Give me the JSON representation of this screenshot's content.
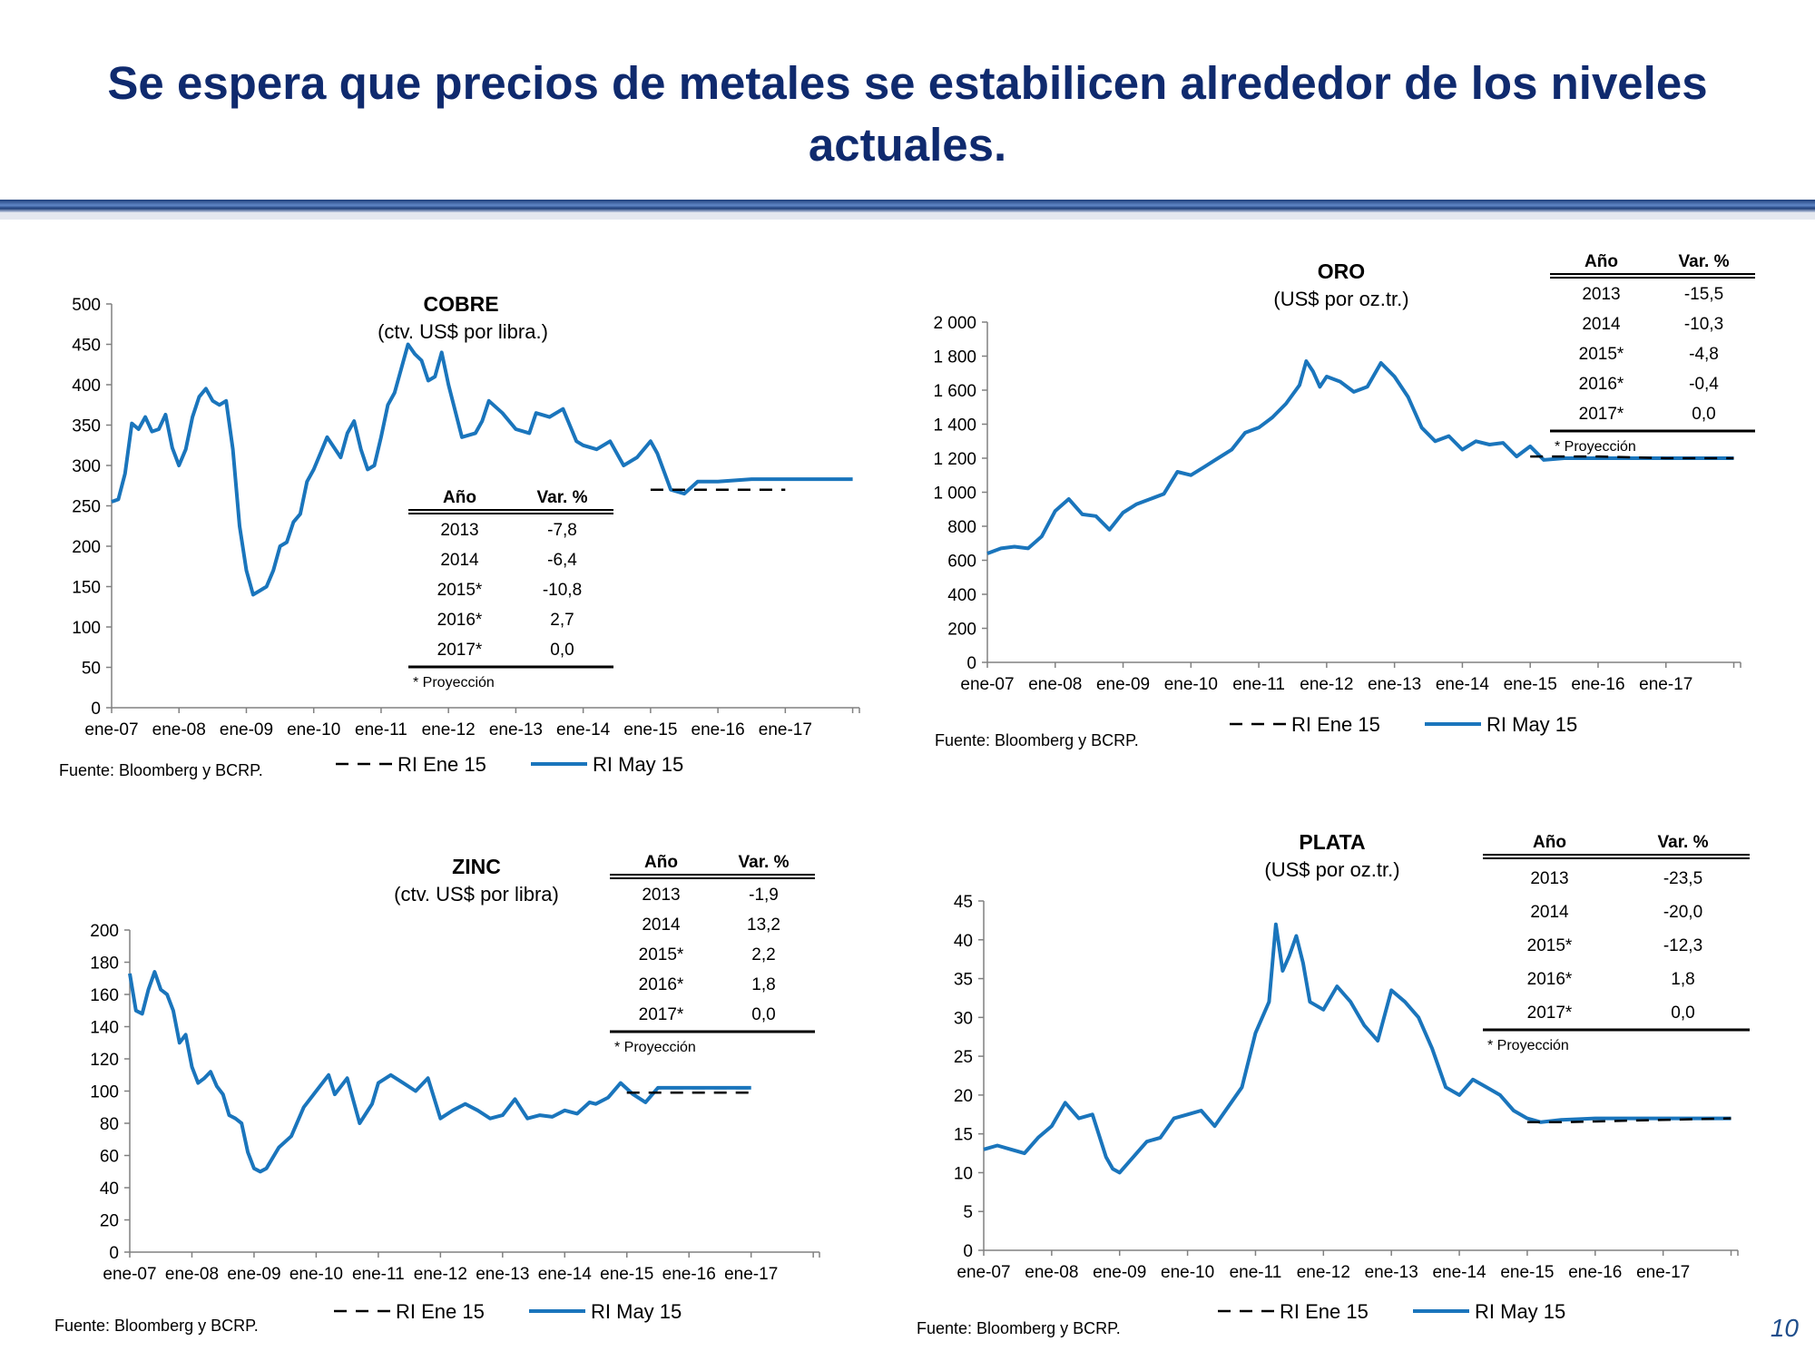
{
  "slide": {
    "title": "Se espera que precios de metales se estabilicen alrededor de los niveles actuales.",
    "page_number": "10"
  },
  "colors": {
    "title": "#0f2a6e",
    "series_may": "#1a75bc",
    "series_ene": "#000000",
    "rule_dark": "#1f3f7a",
    "rule_light": "#8faad8"
  },
  "chart_data": [
    {
      "id": "cobre",
      "type": "line",
      "title": "COBRE",
      "subtitle": "(ctv. US$ por libra.)",
      "source": "Fuente: Bloomberg y BCRP.",
      "x_tick_labels": [
        "ene-07",
        "ene-08",
        "ene-09",
        "ene-10",
        "ene-11",
        "ene-12",
        "ene-13",
        "ene-14",
        "ene-15",
        "ene-16",
        "ene-17"
      ],
      "x_range": [
        2007,
        2018.1
      ],
      "ylim": [
        0,
        500
      ],
      "y_ticks": [
        0,
        50,
        100,
        150,
        200,
        250,
        300,
        350,
        400,
        450,
        500
      ],
      "y_tick_labels": [
        "0",
        "50",
        "100",
        "150",
        "200",
        "250",
        "300",
        "350",
        "400",
        "450",
        "500"
      ],
      "grid": false,
      "legend": [
        "RI Ene 15",
        "RI May 15"
      ],
      "series": [
        {
          "name": "RI Ene 15",
          "style": "dashed",
          "x": [
            2015.0,
            2015.5,
            2016.0,
            2016.5,
            2017.0
          ],
          "y": [
            270,
            270,
            270,
            270,
            270
          ]
        },
        {
          "name": "RI May 15",
          "style": "solid",
          "x": [
            2007.0,
            2007.1,
            2007.2,
            2007.3,
            2007.4,
            2007.5,
            2007.6,
            2007.7,
            2007.8,
            2007.9,
            2008.0,
            2008.1,
            2008.2,
            2008.3,
            2008.4,
            2008.5,
            2008.6,
            2008.7,
            2008.8,
            2008.9,
            2009.0,
            2009.1,
            2009.2,
            2009.3,
            2009.4,
            2009.5,
            2009.6,
            2009.7,
            2009.8,
            2009.9,
            2010.0,
            2010.2,
            2010.4,
            2010.5,
            2010.6,
            2010.7,
            2010.8,
            2010.9,
            2011.0,
            2011.1,
            2011.2,
            2011.3,
            2011.4,
            2011.5,
            2011.6,
            2011.7,
            2011.8,
            2011.9,
            2012.0,
            2012.2,
            2012.4,
            2012.5,
            2012.6,
            2012.8,
            2013.0,
            2013.2,
            2013.3,
            2013.5,
            2013.7,
            2013.9,
            2014.0,
            2014.2,
            2014.4,
            2014.6,
            2014.8,
            2015.0,
            2015.1,
            2015.3,
            2015.5,
            2015.7,
            2016.0,
            2016.5,
            2017.0,
            2017.5,
            2018.0
          ],
          "y": [
            255,
            258,
            290,
            352,
            345,
            360,
            342,
            345,
            363,
            322,
            300,
            320,
            360,
            385,
            395,
            380,
            375,
            380,
            320,
            225,
            170,
            140,
            145,
            150,
            170,
            200,
            205,
            230,
            240,
            280,
            295,
            335,
            310,
            340,
            355,
            320,
            295,
            300,
            335,
            375,
            390,
            420,
            450,
            438,
            430,
            405,
            410,
            440,
            400,
            335,
            340,
            355,
            380,
            365,
            345,
            340,
            365,
            360,
            370,
            330,
            325,
            320,
            330,
            300,
            310,
            330,
            315,
            270,
            265,
            280,
            280,
            283,
            283,
            283,
            283
          ]
        }
      ],
      "table": {
        "headers": [
          "Año",
          "Var. %"
        ],
        "rows": [
          [
            "2013",
            "-7,8"
          ],
          [
            "2014",
            "-6,4"
          ],
          [
            "2015*",
            "-10,8"
          ],
          [
            "2016*",
            "2,7"
          ],
          [
            "2017*",
            "0,0"
          ]
        ],
        "note": "* Proyección"
      }
    },
    {
      "id": "oro",
      "type": "line",
      "title": "ORO",
      "subtitle": "(US$ por oz.tr.)",
      "source": "Fuente: Bloomberg y BCRP.",
      "x_tick_labels": [
        "ene-07",
        "ene-08",
        "ene-09",
        "ene-10",
        "ene-11",
        "ene-12",
        "ene-13",
        "ene-14",
        "ene-15",
        "ene-16",
        "ene-17"
      ],
      "x_range": [
        2007,
        2018.1
      ],
      "ylim": [
        0,
        2000
      ],
      "y_ticks": [
        0,
        200,
        400,
        600,
        800,
        1000,
        1200,
        1400,
        1600,
        1800,
        2000
      ],
      "y_tick_labels": [
        "0",
        "200",
        "400",
        "600",
        "800",
        "1 000",
        "1 200",
        "1 400",
        "1 600",
        "1 800",
        "2 000"
      ],
      "grid": false,
      "legend": [
        "RI Ene 15",
        "RI May 15"
      ],
      "series": [
        {
          "name": "RI Ene 15",
          "style": "dashed",
          "x": [
            2015.0,
            2015.5,
            2016.0,
            2016.5,
            2017.0,
            2017.5,
            2018.0
          ],
          "y": [
            1210,
            1210,
            1210,
            1205,
            1200,
            1200,
            1200
          ]
        },
        {
          "name": "RI May 15",
          "style": "solid",
          "x": [
            2007.0,
            2007.2,
            2007.4,
            2007.6,
            2007.8,
            2008.0,
            2008.2,
            2008.4,
            2008.6,
            2008.8,
            2009.0,
            2009.2,
            2009.4,
            2009.6,
            2009.8,
            2010.0,
            2010.2,
            2010.4,
            2010.6,
            2010.8,
            2011.0,
            2011.2,
            2011.4,
            2011.6,
            2011.7,
            2011.8,
            2011.9,
            2012.0,
            2012.2,
            2012.4,
            2012.6,
            2012.8,
            2013.0,
            2013.2,
            2013.4,
            2013.6,
            2013.8,
            2014.0,
            2014.2,
            2014.4,
            2014.6,
            2014.8,
            2015.0,
            2015.2,
            2015.5,
            2016.0,
            2016.5,
            2017.0,
            2017.5,
            2018.0
          ],
          "y": [
            640,
            670,
            680,
            670,
            740,
            890,
            960,
            870,
            860,
            780,
            880,
            930,
            960,
            990,
            1120,
            1100,
            1150,
            1200,
            1250,
            1350,
            1380,
            1440,
            1520,
            1630,
            1770,
            1710,
            1620,
            1680,
            1650,
            1590,
            1620,
            1760,
            1680,
            1560,
            1380,
            1300,
            1330,
            1250,
            1300,
            1280,
            1290,
            1210,
            1270,
            1190,
            1200,
            1200,
            1200,
            1200,
            1200,
            1200
          ]
        }
      ],
      "table": {
        "headers": [
          "Año",
          "Var. %"
        ],
        "rows": [
          [
            "2013",
            "-15,5"
          ],
          [
            "2014",
            "-10,3"
          ],
          [
            "2015*",
            "-4,8"
          ],
          [
            "2016*",
            "-0,4"
          ],
          [
            "2017*",
            "0,0"
          ]
        ],
        "note": "* Proyección"
      }
    },
    {
      "id": "zinc",
      "type": "line",
      "title": "ZINC",
      "subtitle": "(ctv. US$ por libra)",
      "source": "Fuente: Bloomberg y BCRP.",
      "x_tick_labels": [
        "ene-07",
        "ene-08",
        "ene-09",
        "ene-10",
        "ene-11",
        "ene-12",
        "ene-13",
        "ene-14",
        "ene-15",
        "ene-16",
        "ene-17"
      ],
      "x_range": [
        2007,
        2018.1
      ],
      "ylim": [
        0,
        200
      ],
      "y_ticks": [
        0,
        20,
        40,
        60,
        80,
        100,
        120,
        140,
        160,
        180,
        200
      ],
      "y_tick_labels": [
        "0",
        "20",
        "40",
        "60",
        "80",
        "100",
        "120",
        "140",
        "160",
        "180",
        "200"
      ],
      "grid": false,
      "legend": [
        "RI Ene 15",
        "RI May 15"
      ],
      "series": [
        {
          "name": "RI Ene 15",
          "style": "dashed",
          "x": [
            2015.0,
            2015.5,
            2016.0,
            2016.5,
            2017.0
          ],
          "y": [
            99,
            99,
            99,
            99,
            99
          ]
        },
        {
          "name": "RI May 15",
          "style": "solid",
          "x": [
            2007.0,
            2007.1,
            2007.2,
            2007.3,
            2007.4,
            2007.5,
            2007.6,
            2007.7,
            2007.8,
            2007.9,
            2008.0,
            2008.1,
            2008.2,
            2008.3,
            2008.4,
            2008.5,
            2008.6,
            2008.7,
            2008.8,
            2008.9,
            2009.0,
            2009.1,
            2009.2,
            2009.4,
            2009.6,
            2009.8,
            2010.0,
            2010.2,
            2010.3,
            2010.5,
            2010.7,
            2010.9,
            2011.0,
            2011.2,
            2011.4,
            2011.6,
            2011.8,
            2012.0,
            2012.2,
            2012.4,
            2012.6,
            2012.8,
            2013.0,
            2013.2,
            2013.4,
            2013.6,
            2013.8,
            2014.0,
            2014.2,
            2014.4,
            2014.5,
            2014.7,
            2014.9,
            2015.1,
            2015.3,
            2015.5,
            2016.0,
            2016.5,
            2017.0
          ],
          "y": [
            173,
            150,
            148,
            163,
            174,
            163,
            160,
            150,
            130,
            135,
            115,
            105,
            108,
            112,
            103,
            98,
            85,
            83,
            80,
            62,
            52,
            50,
            52,
            65,
            72,
            90,
            100,
            110,
            98,
            108,
            80,
            92,
            105,
            110,
            105,
            100,
            108,
            83,
            88,
            92,
            88,
            83,
            85,
            95,
            83,
            85,
            84,
            88,
            86,
            93,
            92,
            96,
            105,
            98,
            93,
            102,
            102,
            102,
            102
          ]
        }
      ],
      "table": {
        "headers": [
          "Año",
          "Var. %"
        ],
        "rows": [
          [
            "2013",
            "-1,9"
          ],
          [
            "2014",
            "13,2"
          ],
          [
            "2015*",
            "2,2"
          ],
          [
            "2016*",
            "1,8"
          ],
          [
            "2017*",
            "0,0"
          ]
        ],
        "note": "* Proyección"
      }
    },
    {
      "id": "plata",
      "type": "line",
      "title": "PLATA",
      "subtitle": "(US$ por oz.tr.)",
      "source": "Fuente: Bloomberg y BCRP.",
      "x_tick_labels": [
        "ene-07",
        "ene-08",
        "ene-09",
        "ene-10",
        "ene-11",
        "ene-12",
        "ene-13",
        "ene-14",
        "ene-15",
        "ene-16",
        "ene-17"
      ],
      "x_range": [
        2007,
        2018.1
      ],
      "ylim": [
        0,
        45
      ],
      "y_ticks": [
        0,
        5,
        10,
        15,
        20,
        25,
        30,
        35,
        40,
        45
      ],
      "y_tick_labels": [
        "0",
        "5",
        "10",
        "15",
        "20",
        "25",
        "30",
        "35",
        "40",
        "45"
      ],
      "grid": false,
      "legend": [
        "RI Ene 15",
        "RI May 15"
      ],
      "series": [
        {
          "name": "RI Ene 15",
          "style": "dashed",
          "x": [
            2015.0,
            2015.5,
            2016.0,
            2016.5,
            2017.0,
            2017.5,
            2018.0
          ],
          "y": [
            16.5,
            16.5,
            16.6,
            16.7,
            16.8,
            16.9,
            17.0
          ]
        },
        {
          "name": "RI May 15",
          "style": "solid",
          "x": [
            2007.0,
            2007.2,
            2007.4,
            2007.6,
            2007.8,
            2008.0,
            2008.2,
            2008.4,
            2008.6,
            2008.8,
            2008.9,
            2009.0,
            2009.2,
            2009.4,
            2009.6,
            2009.8,
            2010.0,
            2010.2,
            2010.4,
            2010.6,
            2010.8,
            2011.0,
            2011.2,
            2011.3,
            2011.4,
            2011.5,
            2011.6,
            2011.7,
            2011.8,
            2012.0,
            2012.2,
            2012.4,
            2012.6,
            2012.8,
            2013.0,
            2013.2,
            2013.4,
            2013.6,
            2013.8,
            2014.0,
            2014.2,
            2014.4,
            2014.6,
            2014.8,
            2015.0,
            2015.2,
            2015.5,
            2016.0,
            2016.5,
            2017.0,
            2017.5,
            2018.0
          ],
          "y": [
            13,
            13.5,
            13,
            12.5,
            14.5,
            16,
            19,
            17,
            17.5,
            12,
            10.5,
            10,
            12,
            14,
            14.5,
            17,
            17.5,
            18,
            16,
            18.5,
            21,
            28,
            32,
            42,
            36,
            38,
            40.5,
            37,
            32,
            31,
            34,
            32,
            29,
            27,
            33.5,
            32,
            30,
            26,
            21,
            20,
            22,
            21,
            20,
            18,
            17,
            16.5,
            16.8,
            17,
            17,
            17,
            17,
            17
          ]
        }
      ],
      "table": {
        "headers": [
          "Año",
          "Var. %"
        ],
        "rows": [
          [
            "2013",
            "-23,5"
          ],
          [
            "2014",
            "-20,0"
          ],
          [
            "2015*",
            "-12,3"
          ],
          [
            "2016*",
            "1,8"
          ],
          [
            "2017*",
            "0,0"
          ]
        ],
        "note": "* Proyección"
      }
    }
  ]
}
